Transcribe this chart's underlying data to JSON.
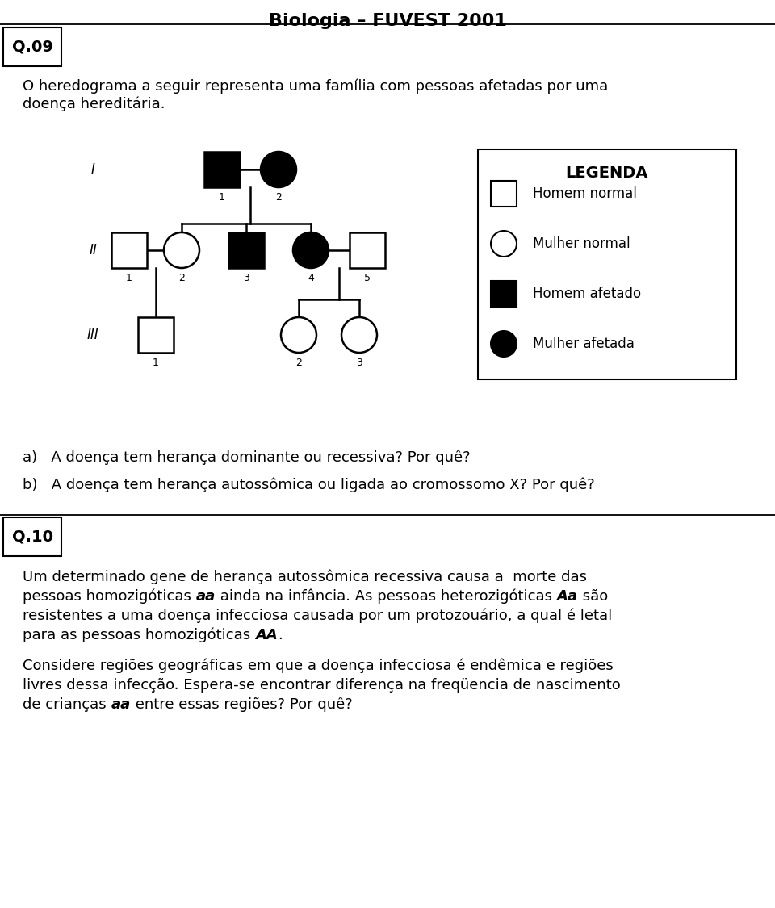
{
  "title": "Biologia – FUVEST 2001",
  "bg_color": "#ffffff",
  "q09_label": "Q.09",
  "q10_label": "Q.10",
  "intro_line1": "O heredograma a seguir representa uma família com pessoas afetadas por uma",
  "intro_line2": "doença hereditária.",
  "question_a": "a)   A doença tem herança dominante ou recessiva? Por quê?",
  "question_b": "b)   A doença tem herança autossômica ou ligada ao cromossomo X? Por quê?",
  "q10_line1": "Um determinado gene de herança autossômica recessiva causa a  morte das",
  "q10_line3": "resistentes a uma doença infecciosa causada por um protozouário, a qual é letal",
  "q10_line5": "Considere regiões geográficas em que a doença infecciosa é endêmica e regiões",
  "q10_line6": "livres dessa infecção. Espera-se encontrar diferença na freqüencia de nascimento",
  "legenda_title": "LEGENDA",
  "legenda_items": [
    "Homem normal",
    "Mulher normal",
    "Homem afetado",
    "Mulher afetada"
  ]
}
